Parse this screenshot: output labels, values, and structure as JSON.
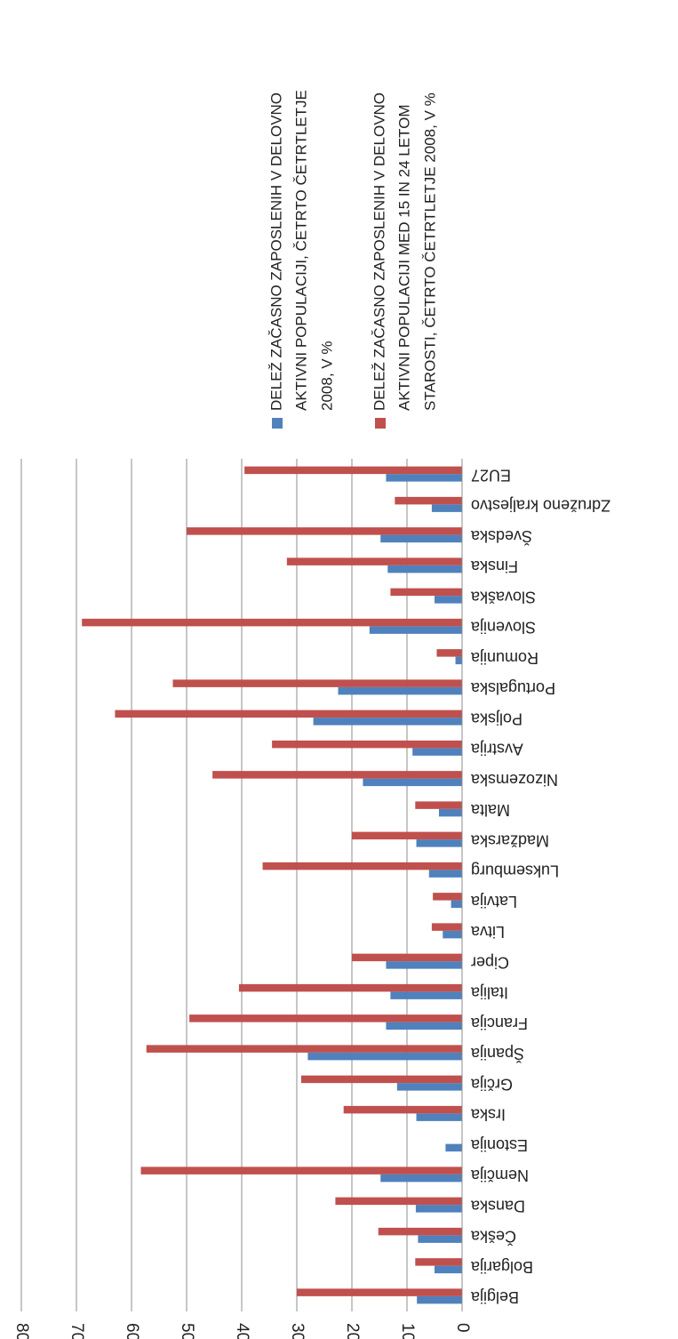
{
  "chart_data": {
    "type": "bar",
    "orientation": "horizontal, rotated page",
    "categories": [
      "Belgija",
      "Bolgarija",
      "Češka",
      "Dansk​a",
      "Nemčija",
      "Estonija",
      "Irska",
      "Grčija",
      "Španija",
      "Francija",
      "Italija",
      "Ciper",
      "Litva",
      "Latvija",
      "Luksemburg",
      "Madžarska",
      "Malta",
      "Nizozemska",
      "Avstrija",
      "Poljska",
      "Portugalska",
      "Romunija",
      "Slovenija",
      "Slovaška",
      "Finska",
      "Švedska",
      "Združeno kraljestvo",
      "EU27"
    ],
    "series": [
      {
        "name": "DELEŽ ZAČASNO ZAPOSLENIH V DELOVNO AKTIVNI POPULACIJI, ČETRTO ČETRTLETJE 2008, V %",
        "color": "#4F81BD",
        "values": [
          8.2,
          5.0,
          8.0,
          8.4,
          14.8,
          3.0,
          8.3,
          11.8,
          28.0,
          13.8,
          13.0,
          13.8,
          3.5,
          2.0,
          6.0,
          8.3,
          4.2,
          18.0,
          9.0,
          27.0,
          22.5,
          1.2,
          16.8,
          5.0,
          13.5,
          14.8,
          5.5,
          13.8
        ]
      },
      {
        "name": "DELEŽ ZAČASNO ZAPOSLENIH V DELOVNO AKTIVNI POPULACIJI MED 15 IN 24 LETOM STAROSTI, ČETRTO ČETRTLETJE 2008, V %",
        "color": "#C0504D",
        "values": [
          30.0,
          8.5,
          15.2,
          23.0,
          58.3,
          0,
          21.5,
          29.2,
          57.3,
          49.5,
          40.5,
          20.0,
          5.5,
          5.3,
          36.2,
          20.0,
          8.5,
          45.3,
          34.5,
          63.0,
          52.5,
          4.6,
          69.0,
          13.0,
          31.8,
          50.0,
          12.2,
          39.5
        ]
      }
    ],
    "ylim": [
      0,
      80
    ],
    "yticks": [
      "0",
      "10",
      "20",
      "30",
      "40",
      "50",
      "60",
      "70",
      "80"
    ],
    "grid": true,
    "legend": "top-right"
  }
}
